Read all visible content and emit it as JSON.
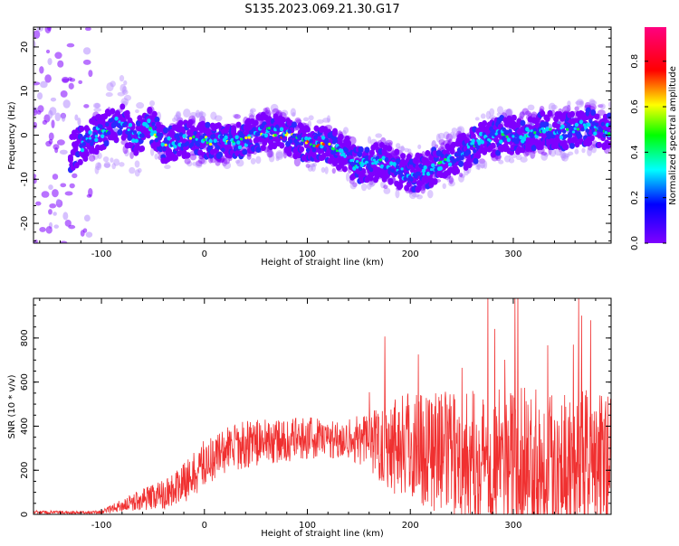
{
  "title": "S135.2023.069.21.30.G17",
  "colors": {
    "snr_line": "#f03030",
    "spectrogram_low": "#7f00ff",
    "spectrogram_high": "#ff0080"
  },
  "chart_data": [
    {
      "type": "heatmap",
      "name": "spectrogram",
      "xlabel": "Height of straight line (km)",
      "ylabel": "Frequency (Hz)",
      "xlim": [
        -166,
        395
      ],
      "ylim": [
        -24.5,
        24.5
      ],
      "xticks": [
        -100,
        0,
        100,
        200,
        300
      ],
      "yticks": [
        -20,
        -10,
        0,
        10,
        20
      ],
      "grid": false,
      "colorbar": {
        "label": "Normalized spectral amplitude",
        "ticks": [
          0.0,
          0.2,
          0.4,
          0.6,
          0.8
        ],
        "range": [
          0,
          0.95
        ],
        "colormap": "hsv (purple-blue-cyan-green-yellow-red-pink)"
      },
      "ridge": {
        "x": [
          -166,
          -130,
          -100,
          -80,
          -65,
          -55,
          -40,
          -20,
          0,
          20,
          40,
          60,
          80,
          100,
          120,
          140,
          150,
          170,
          190,
          200,
          215,
          230,
          250,
          270,
          290,
          310,
          330,
          350,
          370,
          395
        ],
        "y": [
          -8,
          -4,
          1,
          3,
          -1,
          3,
          -2,
          -1,
          -1,
          -2,
          -1,
          1,
          0,
          -2,
          -2,
          -5,
          -7,
          -6,
          -8,
          -9,
          -8,
          -6,
          -4,
          -1,
          0,
          0,
          1,
          1,
          2,
          1
        ]
      }
    },
    {
      "type": "line",
      "name": "snr",
      "xlabel": "Height of straight line (km)",
      "ylabel": "SNR (10 * v/v)",
      "xlim": [
        -166,
        395
      ],
      "ylim": [
        0,
        980
      ],
      "xticks": [
        -100,
        0,
        100,
        200,
        300
      ],
      "yticks": [
        0,
        200,
        400,
        600,
        800
      ],
      "grid": false,
      "envelope": {
        "x": [
          -166,
          -120,
          -100,
          -80,
          -60,
          -40,
          -20,
          0,
          20,
          40,
          60,
          80,
          100,
          120,
          140,
          160,
          180,
          200,
          220,
          240,
          260,
          280,
          300,
          320,
          340,
          360,
          380,
          395
        ],
        "mean": [
          10,
          8,
          10,
          40,
          70,
          90,
          140,
          230,
          290,
          320,
          330,
          330,
          350,
          340,
          345,
          330,
          330,
          320,
          300,
          270,
          260,
          250,
          250,
          250,
          250,
          240,
          240,
          240
        ],
        "spread": [
          8,
          6,
          8,
          30,
          50,
          70,
          90,
          110,
          110,
          110,
          100,
          100,
          100,
          90,
          100,
          130,
          230,
          260,
          280,
          280,
          300,
          320,
          330,
          330,
          330,
          330,
          330,
          330
        ]
      }
    }
  ]
}
